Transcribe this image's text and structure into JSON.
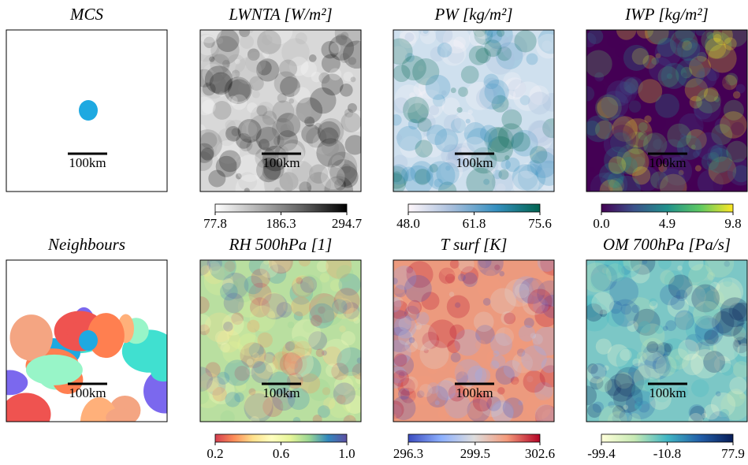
{
  "chart_data": [
    {
      "type": "mask",
      "title": "MCS",
      "scale_bar": "100km",
      "color": "#ffffff"
    },
    {
      "type": "field",
      "title": "LWNTA [W/m²]",
      "scale_bar": "100km",
      "color": "#d8d8d8",
      "cmap": [
        "#ffffff",
        "#b0b0b0",
        "#606060",
        "#000000"
      ],
      "clim": [
        77.8,
        294.7
      ],
      "cticks": [
        77.8,
        186.3,
        294.7
      ]
    },
    {
      "type": "field",
      "title": "PW [kg/m²]",
      "scale_bar": "100km",
      "color": "#cfe0ee",
      "cmap": [
        "#fff7fb",
        "#a6bddb",
        "#3690c0",
        "#016450"
      ],
      "clim": [
        48,
        75.6
      ],
      "cticks": [
        {
          "value": 48,
          "label": "48.0"
        },
        61.8,
        75.6
      ]
    },
    {
      "type": "field",
      "title": "IWP [kg/m²]",
      "scale_bar": "100km",
      "color": "#440154",
      "cmap": [
        "#440154",
        "#3b528b",
        "#21918c",
        "#5ec962",
        "#fde725"
      ],
      "clim": [
        0,
        9.8
      ],
      "cticks": [
        {
          "value": 0,
          "label": "0.0"
        },
        4.9,
        9.8
      ]
    },
    {
      "type": "mask",
      "title": "Neighbours",
      "scale_bar": "100km",
      "color": "#ffffff"
    },
    {
      "type": "field",
      "title": "RH 500hPa [1]",
      "scale_bar": "100km",
      "color": "#b9dfa0",
      "cmap": [
        "#d53e4f",
        "#fc8d59",
        "#fee08b",
        "#ffffbf",
        "#e6f598",
        "#99d594",
        "#3288bd",
        "#5e4fa2"
      ],
      "clim": [
        0.2,
        1
      ],
      "cticks": [
        0.2,
        0.6,
        {
          "value": 1,
          "label": "1.0"
        }
      ]
    },
    {
      "type": "field",
      "title": "T surf [K]",
      "scale_bar": "100km",
      "color": "#ec9a7e",
      "cmap": [
        "#3b4cc0",
        "#8db0fe",
        "#dddddd",
        "#f49a7b",
        "#b40426"
      ],
      "clim": [
        296.3,
        302.6
      ],
      "cticks": [
        296.3,
        299.5,
        302.6
      ]
    },
    {
      "type": "field",
      "title": "OM 700hPa [Pa/s]",
      "scale_bar": "100km",
      "color": "#7cc7c6",
      "cmap": [
        "#ffffd9",
        "#c7e9b4",
        "#41b6c4",
        "#225ea8",
        "#081d58"
      ],
      "clim": [
        -99.4,
        77.9
      ],
      "cticks": [
        -99.4,
        -10.8,
        77.9
      ]
    }
  ]
}
